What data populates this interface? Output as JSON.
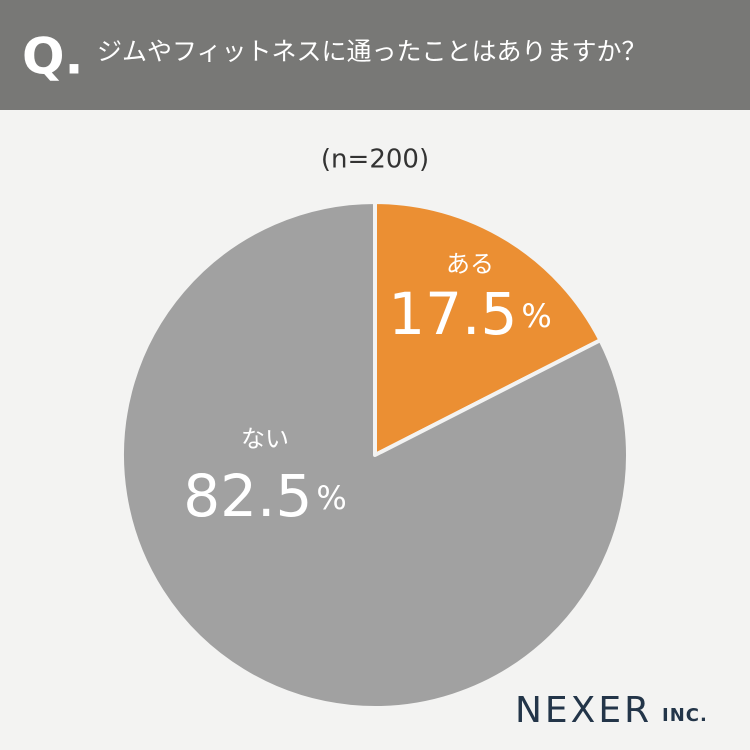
{
  "question_mark": "Q.",
  "logo": {
    "name": "NEXER",
    "suffix": "INC."
  },
  "chart_data": {
    "type": "pie",
    "title": "ジムやフィットネスに通ったことはありますか？",
    "subtitle": "(n=200)",
    "categories": [
      "ある",
      "ない"
    ],
    "values": [
      17.5,
      82.5
    ],
    "value_labels": [
      "17.5%",
      "82.5%"
    ],
    "colors": [
      "#eb8f33",
      "#a1a1a1"
    ]
  }
}
